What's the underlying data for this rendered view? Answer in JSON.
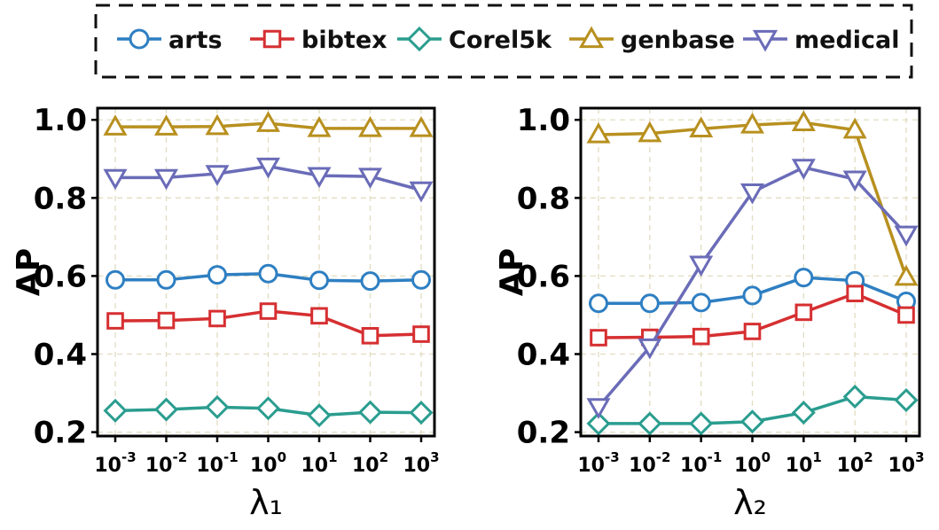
{
  "legend": [
    {
      "name": "arts",
      "color": "#2e7fc2",
      "marker": "circle"
    },
    {
      "name": "bibtex",
      "color": "#d62f31",
      "marker": "square"
    },
    {
      "name": "Corel5k",
      "color": "#2a9d8f",
      "marker": "diamond"
    },
    {
      "name": "genbase",
      "color": "#b8901f",
      "marker": "triangle-up"
    },
    {
      "name": "medical",
      "color": "#6a6cb8",
      "marker": "triangle-down"
    }
  ],
  "chart_data": [
    {
      "type": "line",
      "xlabel": "λ₁",
      "ylabel": "AP",
      "categories": [
        "10^-3",
        "10^-2",
        "10^-1",
        "10^0",
        "10^1",
        "10^2",
        "10^3"
      ],
      "yticks": [
        "0.2",
        "0.4",
        "0.6",
        "0.8",
        "1.0"
      ],
      "ylim": [
        0.19,
        1.03
      ],
      "grid": true,
      "series": [
        {
          "name": "arts",
          "values": [
            0.59,
            0.59,
            0.603,
            0.606,
            0.589,
            0.587,
            0.59
          ]
        },
        {
          "name": "bibtex",
          "values": [
            0.485,
            0.486,
            0.491,
            0.51,
            0.498,
            0.447,
            0.451
          ]
        },
        {
          "name": "Corel5k",
          "values": [
            0.255,
            0.258,
            0.264,
            0.261,
            0.243,
            0.251,
            0.25
          ]
        },
        {
          "name": "genbase",
          "values": [
            0.982,
            0.982,
            0.983,
            0.991,
            0.978,
            0.978,
            0.978
          ]
        },
        {
          "name": "medical",
          "values": [
            0.852,
            0.852,
            0.862,
            0.881,
            0.857,
            0.855,
            0.82
          ]
        }
      ]
    },
    {
      "type": "line",
      "xlabel": "λ₂",
      "ylabel": "AP",
      "categories": [
        "10^-3",
        "10^-2",
        "10^-1",
        "10^0",
        "10^1",
        "10^2",
        "10^3"
      ],
      "yticks": [
        "0.2",
        "0.4",
        "0.6",
        "0.8",
        "1.0"
      ],
      "ylim": [
        0.19,
        1.03
      ],
      "grid": true,
      "series": [
        {
          "name": "arts",
          "values": [
            0.53,
            0.53,
            0.532,
            0.55,
            0.596,
            0.588,
            0.535
          ]
        },
        {
          "name": "bibtex",
          "values": [
            0.442,
            0.443,
            0.445,
            0.458,
            0.507,
            0.555,
            0.5
          ]
        },
        {
          "name": "Corel5k",
          "values": [
            0.222,
            0.222,
            0.222,
            0.227,
            0.25,
            0.291,
            0.282
          ]
        },
        {
          "name": "genbase",
          "values": [
            0.962,
            0.965,
            0.977,
            0.987,
            0.993,
            0.974,
            0.597
          ]
        },
        {
          "name": "medical",
          "values": [
            0.265,
            0.418,
            0.63,
            0.815,
            0.878,
            0.848,
            0.707
          ]
        }
      ]
    }
  ]
}
